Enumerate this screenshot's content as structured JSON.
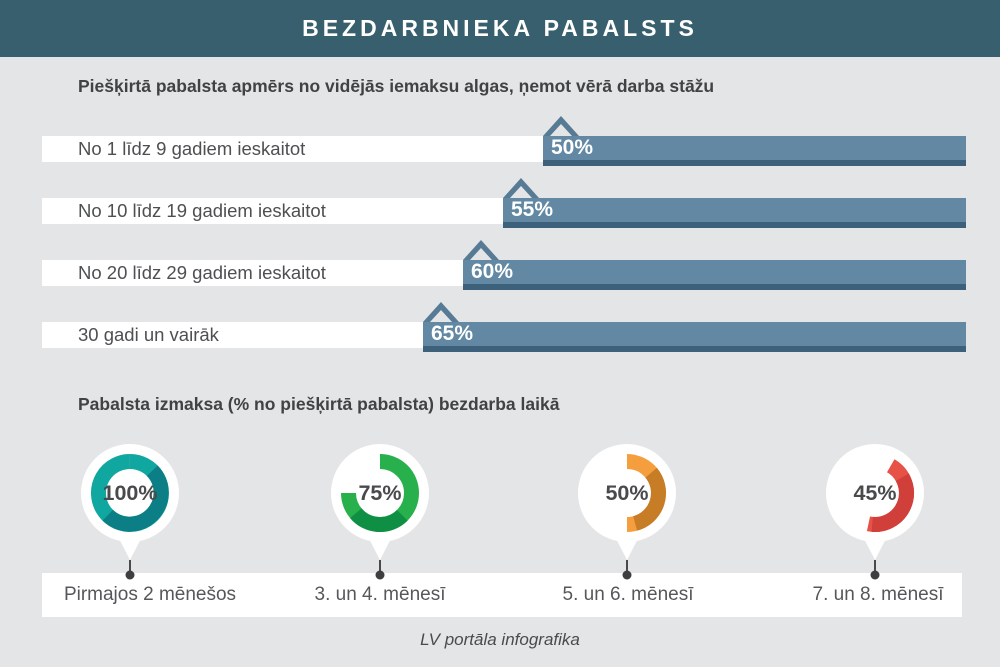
{
  "header": {
    "title": "BEZDARBNIEKA PABALSTS"
  },
  "footer": {
    "credit": "LV portāla infografika"
  },
  "colors": {
    "background": "#e4e5e7",
    "header_bg": "#375f6e",
    "bar": "#6288a3",
    "bar_shadow": "#3d617a",
    "marker_outline": "#577b95",
    "band_bg": "#ffffff"
  },
  "chart_data": [
    {
      "type": "bar",
      "title": "Piešķirtā pabalsta apmērs no vidējās iemaksu algas, ņemot vērā darba stāžu",
      "categories": [
        "No 1 līdz 9 gadiem ieskaitot",
        "No 10 līdz 19 gadiem ieskaitot",
        "No 20 līdz 29 gadiem ieskaitot",
        "30 gadi un vairāk"
      ],
      "values": [
        50,
        55,
        60,
        65
      ],
      "value_labels": [
        "50%",
        "55%",
        "60%",
        "65%"
      ],
      "unit": "%",
      "bar_color": "#6288a3",
      "orientation": "horizontal"
    },
    {
      "type": "pie",
      "subtype": "donut",
      "title": "Pabalsta izmaksa (% no piešķirtā pabalsta) bezdarba laikā",
      "donuts": [
        {
          "label": "Pirmajos 2 mēnešos",
          "value": 100,
          "value_label": "100%",
          "color": "#10a7a0",
          "shadow_color": "#0c7f86"
        },
        {
          "label": "3. un 4. mēnesī",
          "value": 75,
          "value_label": "75%",
          "color": "#27b04c",
          "shadow_color": "#0f8f43"
        },
        {
          "label": "5. un 6. mēnesī",
          "value": 50,
          "value_label": "50%",
          "color": "#f59e3d",
          "shadow_color": "#c77c26"
        },
        {
          "label": "7. un 8. mēnesī",
          "value": 45,
          "value_label": "45%",
          "color": "#e65148",
          "shadow_color": "#d13f3a"
        }
      ]
    }
  ]
}
